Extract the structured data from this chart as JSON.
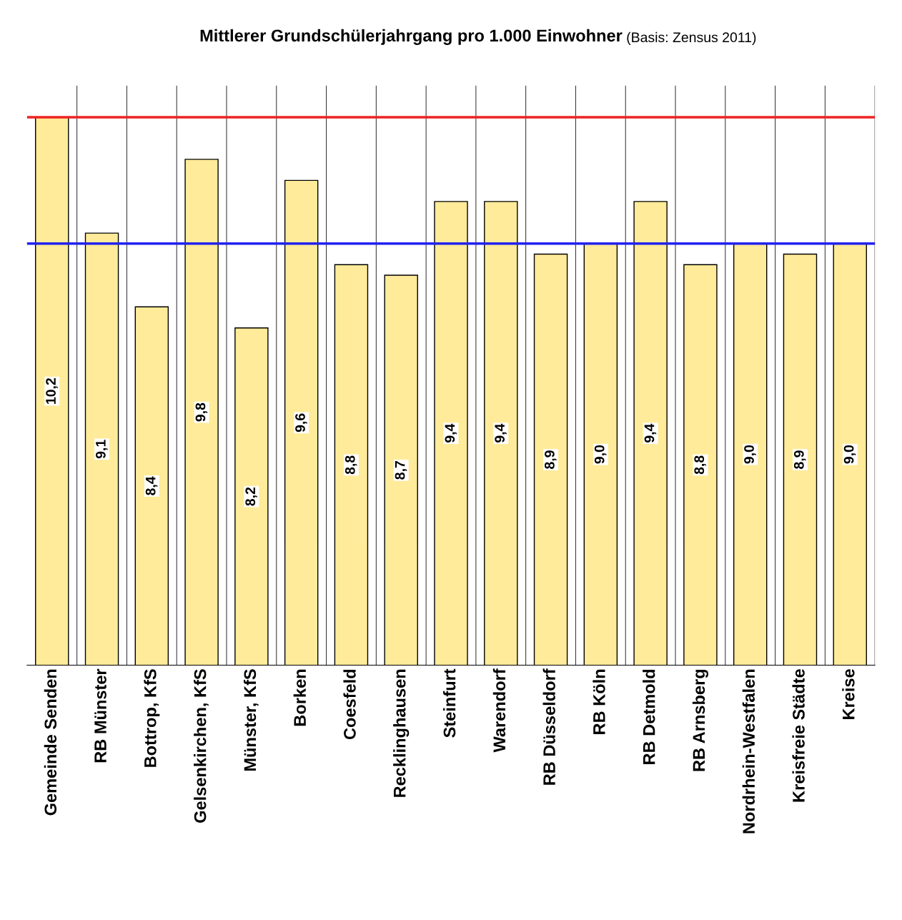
{
  "chart_data": {
    "type": "bar",
    "title": "Mittlerer Grundschülerjahrgang pro 1.000 Einwohner",
    "subtitle": "(Basis: Zensus 2011)",
    "categories": [
      "Gemeinde Senden",
      "RB Münster",
      "Bottrop, KfS",
      "Gelsenkirchen, KfS",
      "Münster, KfS",
      "Borken",
      "Coesfeld",
      "Recklinghausen",
      "Steinfurt",
      "Warendorf",
      "RB Düsseldorf",
      "RB Köln",
      "RB Detmold",
      "RB Arnsberg",
      "Nordrhein-Westfalen",
      "Kreisfreie Städte",
      "Kreise"
    ],
    "values": [
      10.2,
      9.1,
      8.4,
      9.8,
      8.2,
      9.6,
      8.8,
      8.7,
      9.4,
      9.4,
      8.9,
      9.0,
      9.4,
      8.8,
      9.0,
      8.9,
      9.0
    ],
    "value_labels": [
      "10,2",
      "9,1",
      "8,4",
      "9,8",
      "8,2",
      "9,6",
      "8,8",
      "8,7",
      "9,4",
      "9,4",
      "8,9",
      "9,0",
      "9,4",
      "8,8",
      "9,0",
      "8,9",
      "9,0"
    ],
    "color": "#ffeb99",
    "ylim": [
      5,
      10.5
    ],
    "tick_labels": "x",
    "grid": "x",
    "legend": false,
    "ref_lines": [
      {
        "axis": "y",
        "value": 10.2,
        "color": "#ee2222"
      },
      {
        "axis": "y",
        "value": 9.0,
        "color": "#2222ee"
      }
    ]
  }
}
